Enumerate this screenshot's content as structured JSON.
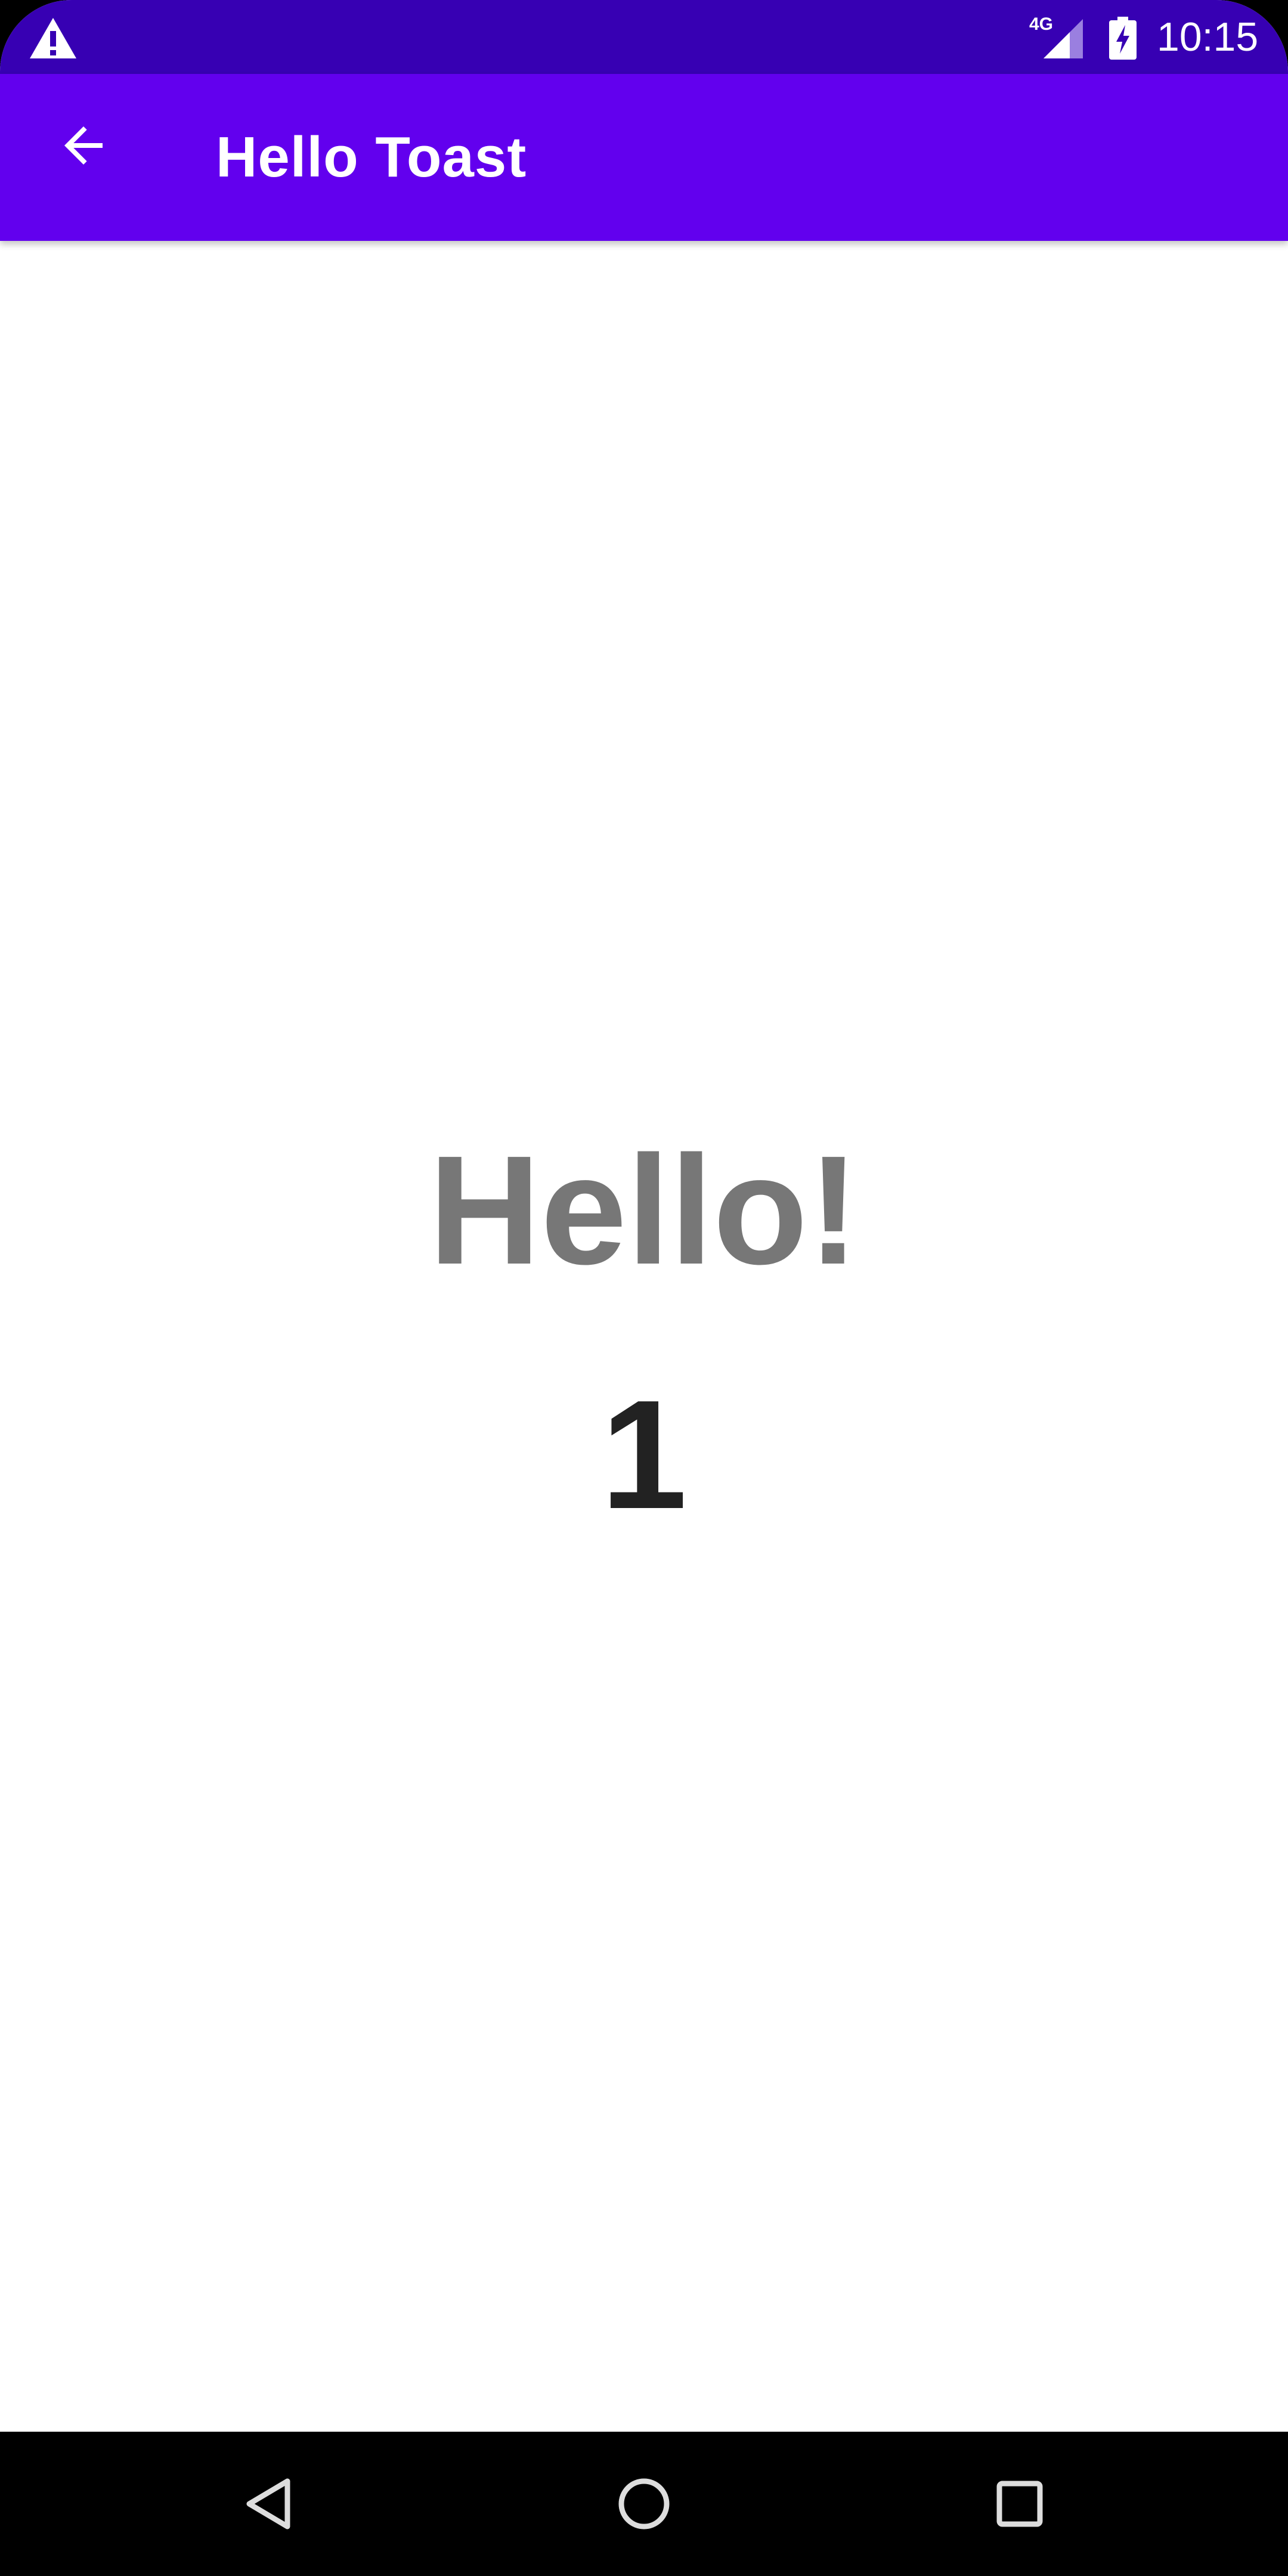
{
  "status_bar": {
    "time": "10:15",
    "network_label": "4G",
    "icons": [
      "warning-icon",
      "signal-4g-icon",
      "battery-charging-icon"
    ]
  },
  "app_bar": {
    "title": "Hello Toast",
    "back_icon": "arrow-back-icon"
  },
  "content": {
    "greeting": "Hello!",
    "count": "1"
  },
  "nav_bar": {
    "icons": [
      "nav-back-icon",
      "nav-home-icon",
      "nav-recents-icon"
    ]
  },
  "colors": {
    "status_bar": "#3700B3",
    "app_bar": "#6200EE",
    "greeting_text": "#777777",
    "count_text": "#222222",
    "background": "#FFFFFF",
    "nav_bar": "#000000"
  }
}
